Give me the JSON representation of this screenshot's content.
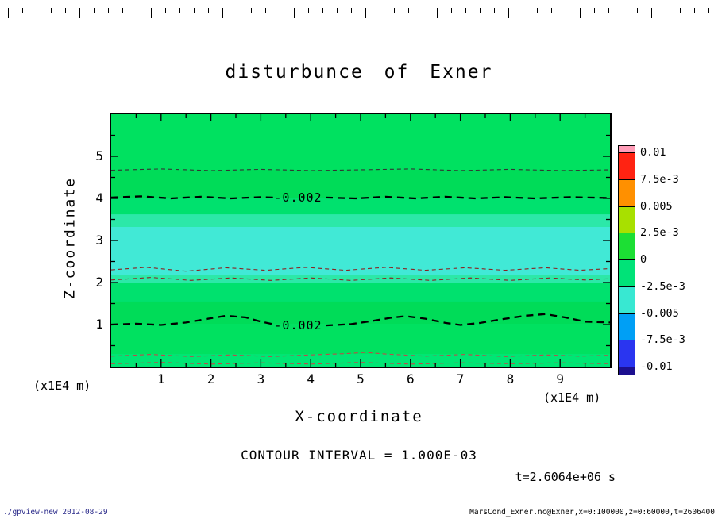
{
  "plot": {
    "title": "disturbunce of Exner",
    "x_axis": {
      "label": "X-coordinate",
      "unit": "(x1E4 m)"
    },
    "y_axis": {
      "label": "Z-coordinate",
      "unit": "(x1E4 m)"
    },
    "contour_interval_text": "CONTOUR INTERVAL = 1.000E-03",
    "time_text": "t=2.6064e+06 s"
  },
  "footer": {
    "left": "./gpview-new  2012-08-29",
    "right": "MarsCond_Exner.nc@Exner,x=0:100000,z=0:60000,t=2606400"
  },
  "chart_data": {
    "type": "heatmap",
    "title": "disturbunce of Exner",
    "xlabel": "X-coordinate (x1E4 m)",
    "ylabel": "Z-coordinate (x1E4 m)",
    "xlim": [
      0,
      10
    ],
    "ylim": [
      0,
      6
    ],
    "x_ticks": [
      1,
      2,
      3,
      4,
      5,
      6,
      7,
      8,
      9
    ],
    "y_ticks": [
      1,
      2,
      3,
      4,
      5
    ],
    "grid": false,
    "contour_interval": 0.001,
    "time_seconds": 2606400,
    "colorbar": {
      "min": -0.01,
      "max": 0.01,
      "tick_labels": [
        "0.01",
        "7.5e-3",
        "0.005",
        "2.5e-3",
        "0",
        "-2.5e-3",
        "-0.005",
        "-7.5e-3",
        "-0.01"
      ],
      "colors": [
        "#ff9db8",
        "#ff2312",
        "#ff9000",
        "#a8e000",
        "#1cdf34",
        "#00e378",
        "#38e8d2",
        "#009ff5",
        "#2a35f0",
        "#1c0f8f"
      ]
    },
    "fill_bands": [
      {
        "z_top": 6.0,
        "z_bottom": 4.68,
        "color": "#00e160",
        "approx_value": "-0.001 to 0"
      },
      {
        "z_top": 4.68,
        "z_bottom": 4.0,
        "color": "#00dc58",
        "approx_value": "-0.002 to -0.001"
      },
      {
        "z_top": 4.0,
        "z_bottom": 3.62,
        "color": "#00e16e",
        "approx_value": "-0.0025 to -0.002"
      },
      {
        "z_top": 3.62,
        "z_bottom": 3.32,
        "color": "#2ce8a8",
        "approx_value": "-0.003 to -0.0025"
      },
      {
        "z_top": 3.32,
        "z_bottom": 2.18,
        "color": "#41e9d6",
        "approx_value": "below -0.003"
      },
      {
        "z_top": 2.18,
        "z_bottom": 2.0,
        "color": "#2ce8a8",
        "approx_value": "-0.003 to -0.0025"
      },
      {
        "z_top": 2.0,
        "z_bottom": 1.55,
        "color": "#00e16e",
        "approx_value": "-0.0025 to -0.002"
      },
      {
        "z_top": 1.55,
        "z_bottom": 1.02,
        "color": "#00dc58",
        "approx_value": "-0.002 to -0.001"
      },
      {
        "z_top": 1.02,
        "z_bottom": 0.3,
        "color": "#00e160",
        "approx_value": "-0.001 to 0"
      },
      {
        "z_top": 0.3,
        "z_bottom": 0.0,
        "color": "#00e674",
        "approx_value": "near 0"
      }
    ],
    "contour_lines": [
      {
        "level_label": null,
        "approx_level": -0.001,
        "weight": "thin",
        "color": "#333333",
        "segments": [
          [
            [
              0,
              4.67
            ],
            [
              1,
              4.7
            ],
            [
              2,
              4.66
            ],
            [
              3,
              4.69
            ],
            [
              4,
              4.66
            ],
            [
              5,
              4.68
            ],
            [
              6,
              4.7
            ],
            [
              7,
              4.66
            ],
            [
              8,
              4.69
            ],
            [
              9,
              4.66
            ],
            [
              10,
              4.68
            ]
          ]
        ]
      },
      {
        "level_label": "-0.002",
        "approx_level": -0.002,
        "weight": "thick",
        "color": "#000000",
        "label_pos": [
          3.75,
          4.02
        ],
        "segments": [
          [
            [
              0,
              4.02
            ],
            [
              0.6,
              4.05
            ],
            [
              1.2,
              4.0
            ],
            [
              1.8,
              4.04
            ],
            [
              2.4,
              4.0
            ],
            [
              3.0,
              4.03
            ],
            [
              3.25,
              4.02
            ]
          ],
          [
            [
              4.3,
              4.02
            ],
            [
              4.9,
              4.0
            ],
            [
              5.5,
              4.04
            ],
            [
              6.1,
              4.0
            ],
            [
              6.7,
              4.04
            ],
            [
              7.3,
              4.0
            ],
            [
              7.9,
              4.03
            ],
            [
              8.5,
              4.0
            ],
            [
              9.2,
              4.03
            ],
            [
              10,
              4.01
            ]
          ]
        ]
      },
      {
        "level_label": null,
        "approx_level": -0.003,
        "weight": "thin",
        "color": "#8b2323",
        "segments": [
          [
            [
              0,
              2.3
            ],
            [
              0.7,
              2.36
            ],
            [
              1.5,
              2.27
            ],
            [
              2.3,
              2.35
            ],
            [
              3.1,
              2.29
            ],
            [
              3.9,
              2.36
            ],
            [
              4.7,
              2.29
            ],
            [
              5.5,
              2.36
            ],
            [
              6.3,
              2.29
            ],
            [
              7.1,
              2.35
            ],
            [
              7.9,
              2.29
            ],
            [
              8.7,
              2.35
            ],
            [
              9.4,
              2.29
            ],
            [
              10,
              2.33
            ]
          ]
        ]
      },
      {
        "level_label": null,
        "approx_level": -0.003,
        "weight": "thin",
        "color": "#8b2323",
        "segments": [
          [
            [
              0,
              2.06
            ],
            [
              0.8,
              2.12
            ],
            [
              1.6,
              2.05
            ],
            [
              2.4,
              2.11
            ],
            [
              3.2,
              2.05
            ],
            [
              4.0,
              2.11
            ],
            [
              4.8,
              2.05
            ],
            [
              5.6,
              2.11
            ],
            [
              6.4,
              2.05
            ],
            [
              7.2,
              2.11
            ],
            [
              8.0,
              2.05
            ],
            [
              8.8,
              2.11
            ],
            [
              9.5,
              2.06
            ],
            [
              10,
              2.09
            ]
          ]
        ]
      },
      {
        "level_label": "-0.002",
        "approx_level": -0.002,
        "weight": "thick",
        "color": "#000000",
        "label_pos": [
          3.75,
          0.98
        ],
        "segments": [
          [
            [
              0,
              1.0
            ],
            [
              0.5,
              1.02
            ],
            [
              1.0,
              0.99
            ],
            [
              1.5,
              1.05
            ],
            [
              2.0,
              1.15
            ],
            [
              2.3,
              1.21
            ],
            [
              2.7,
              1.17
            ],
            [
              3.0,
              1.07
            ],
            [
              3.25,
              1.01
            ]
          ],
          [
            [
              4.3,
              0.98
            ],
            [
              4.8,
              1.01
            ],
            [
              5.2,
              1.08
            ],
            [
              5.6,
              1.16
            ],
            [
              5.9,
              1.2
            ],
            [
              6.3,
              1.14
            ],
            [
              6.7,
              1.04
            ],
            [
              7.0,
              0.99
            ],
            [
              7.4,
              1.04
            ],
            [
              7.8,
              1.12
            ],
            [
              8.3,
              1.21
            ],
            [
              8.7,
              1.25
            ],
            [
              9.1,
              1.17
            ],
            [
              9.5,
              1.07
            ],
            [
              10,
              1.05
            ]
          ]
        ]
      },
      {
        "level_label": null,
        "approx_level": -0.001,
        "weight": "thin",
        "color": "#c04848",
        "segments": [
          [
            [
              0,
              0.25
            ],
            [
              0.8,
              0.29
            ],
            [
              1.6,
              0.24
            ],
            [
              2.4,
              0.28
            ],
            [
              3.2,
              0.24
            ],
            [
              4.0,
              0.28
            ],
            [
              4.7,
              0.31
            ],
            [
              5.1,
              0.34
            ],
            [
              5.5,
              0.3
            ],
            [
              6.3,
              0.25
            ],
            [
              7.1,
              0.29
            ],
            [
              7.9,
              0.24
            ],
            [
              8.7,
              0.28
            ],
            [
              9.4,
              0.25
            ],
            [
              10,
              0.27
            ]
          ]
        ]
      },
      {
        "level_label": null,
        "approx_level": 0.0,
        "weight": "thin",
        "color": "#c04848",
        "segments": [
          [
            [
              0,
              0.07
            ],
            [
              1,
              0.1
            ],
            [
              2,
              0.06
            ],
            [
              3,
              0.09
            ],
            [
              4,
              0.06
            ],
            [
              5,
              0.1
            ],
            [
              6,
              0.06
            ],
            [
              7,
              0.09
            ],
            [
              8,
              0.07
            ],
            [
              9,
              0.09
            ],
            [
              10,
              0.07
            ]
          ]
        ]
      }
    ]
  }
}
